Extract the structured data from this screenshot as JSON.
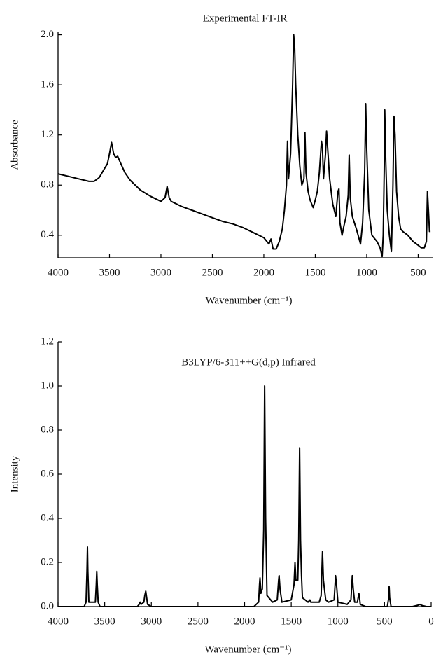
{
  "chart_data": [
    {
      "type": "line",
      "title": "Experimental FT-IR",
      "x_label": "Wavenumber (cm⁻¹)",
      "y_label": "Absorbance",
      "xlim": [
        4000,
        360
      ],
      "ylim": [
        0.22,
        2.02
      ],
      "xticks": [
        4000,
        3500,
        3000,
        2500,
        2000,
        1500,
        1000,
        500
      ],
      "yticks": [
        0.4,
        0.8,
        1.2,
        1.6,
        {
          "value": 2,
          "label": "2.0"
        }
      ],
      "color": "#000000",
      "x": [
        4000,
        3900,
        3800,
        3700,
        3650,
        3600,
        3550,
        3520,
        3500,
        3480,
        3460,
        3440,
        3420,
        3400,
        3350,
        3300,
        3200,
        3100,
        3000,
        2960,
        2940,
        2920,
        2900,
        2800,
        2700,
        2600,
        2500,
        2400,
        2300,
        2200,
        2100,
        2000,
        1950,
        1930,
        1910,
        1880,
        1850,
        1820,
        1800,
        1780,
        1770,
        1760,
        1740,
        1720,
        1710,
        1700,
        1690,
        1670,
        1650,
        1630,
        1610,
        1600,
        1590,
        1570,
        1550,
        1520,
        1500,
        1480,
        1460,
        1440,
        1430,
        1420,
        1400,
        1390,
        1380,
        1360,
        1330,
        1300,
        1280,
        1270,
        1260,
        1240,
        1220,
        1200,
        1180,
        1170,
        1160,
        1140,
        1100,
        1060,
        1040,
        1020,
        1010,
        1000,
        980,
        950,
        900,
        870,
        850,
        840,
        830,
        825,
        815,
        800,
        780,
        760,
        745,
        735,
        725,
        710,
        690,
        670,
        650,
        600,
        550,
        500,
        470,
        440,
        420,
        410,
        400,
        390,
        380
      ],
      "values": [
        0.89,
        0.87,
        0.85,
        0.83,
        0.83,
        0.86,
        0.93,
        0.97,
        1.05,
        1.14,
        1.05,
        1.02,
        1.03,
        0.99,
        0.9,
        0.84,
        0.76,
        0.71,
        0.67,
        0.7,
        0.79,
        0.7,
        0.67,
        0.63,
        0.6,
        0.57,
        0.54,
        0.51,
        0.49,
        0.46,
        0.42,
        0.38,
        0.33,
        0.37,
        0.29,
        0.29,
        0.35,
        0.45,
        0.6,
        0.8,
        1.15,
        0.85,
        1.05,
        1.6,
        2.0,
        1.9,
        1.6,
        1.2,
        0.95,
        0.8,
        0.85,
        1.22,
        0.9,
        0.75,
        0.68,
        0.62,
        0.68,
        0.75,
        0.9,
        1.15,
        1.1,
        0.85,
        1.05,
        1.23,
        1.1,
        0.85,
        0.65,
        0.55,
        0.75,
        0.77,
        0.5,
        0.4,
        0.48,
        0.55,
        0.72,
        1.04,
        0.7,
        0.55,
        0.45,
        0.33,
        0.5,
        0.9,
        1.45,
        1.1,
        0.6,
        0.4,
        0.35,
        0.3,
        0.23,
        0.4,
        0.9,
        1.4,
        1.0,
        0.6,
        0.4,
        0.27,
        0.8,
        1.35,
        1.2,
        0.75,
        0.55,
        0.45,
        0.43,
        0.4,
        0.35,
        0.32,
        0.3,
        0.3,
        0.35,
        0.75,
        0.6,
        0.43,
        0.43
      ]
    },
    {
      "type": "line",
      "title": "B3LYP/6-311++G(d,p) Infrared",
      "x_label": "Wavenumber (cm⁻¹)",
      "y_label": "Intensity",
      "xlim": [
        4000,
        0
      ],
      "ylim": [
        0,
        1.2
      ],
      "xticks": [
        4000,
        3500,
        3000,
        2500,
        2000,
        1500,
        1000,
        500,
        0
      ],
      "yticks": [
        {
          "value": 0,
          "label": "0.0"
        },
        0.2,
        0.4,
        0.6,
        0.8,
        {
          "value": 1,
          "label": "1.0"
        },
        1.2
      ],
      "color": "#000000",
      "x": [
        4000,
        3720,
        3700,
        3690,
        3685,
        3680,
        3670,
        3600,
        3590,
        3585,
        3580,
        3570,
        3550,
        3150,
        3130,
        3120,
        3110,
        3080,
        3070,
        3060,
        3050,
        3040,
        3000,
        1900,
        1850,
        1840,
        1835,
        1825,
        1810,
        1795,
        1785,
        1775,
        1760,
        1700,
        1650,
        1635,
        1630,
        1620,
        1600,
        1500,
        1470,
        1460,
        1450,
        1430,
        1420,
        1410,
        1400,
        1390,
        1380,
        1320,
        1300,
        1290,
        1200,
        1180,
        1165,
        1155,
        1150,
        1130,
        1100,
        1040,
        1030,
        1025,
        1015,
        1000,
        900,
        860,
        850,
        845,
        835,
        820,
        790,
        775,
        770,
        760,
        700,
        470,
        455,
        450,
        445,
        430,
        200,
        150,
        120,
        100,
        50,
        0
      ],
      "values": [
        0,
        0,
        0.02,
        0.16,
        0.27,
        0.16,
        0.02,
        0.02,
        0.1,
        0.16,
        0.1,
        0.02,
        0,
        0,
        0.01,
        0.02,
        0.01,
        0.02,
        0.05,
        0.07,
        0.04,
        0.01,
        0,
        0,
        0.02,
        0.1,
        0.13,
        0.06,
        0.08,
        0.35,
        1.0,
        0.4,
        0.05,
        0.02,
        0.03,
        0.12,
        0.14,
        0.08,
        0.02,
        0.03,
        0.1,
        0.2,
        0.12,
        0.12,
        0.3,
        0.72,
        0.3,
        0.14,
        0.04,
        0.02,
        0.03,
        0.02,
        0.02,
        0.05,
        0.25,
        0.12,
        0.1,
        0.03,
        0.02,
        0.03,
        0.1,
        0.14,
        0.1,
        0.02,
        0.01,
        0.03,
        0.1,
        0.14,
        0.08,
        0.02,
        0.02,
        0.06,
        0.05,
        0.01,
        0,
        0,
        0.04,
        0.09,
        0.04,
        0,
        0,
        0.005,
        0.01,
        0.005,
        0,
        0
      ]
    }
  ]
}
